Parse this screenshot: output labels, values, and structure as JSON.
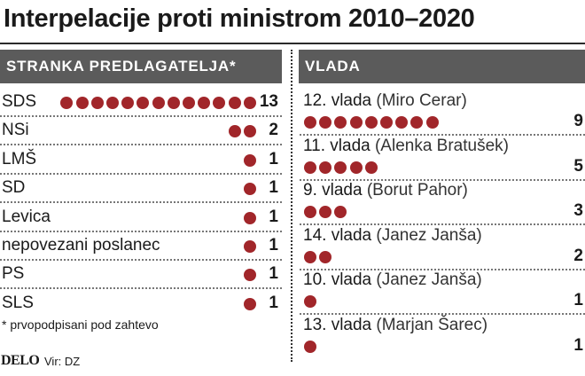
{
  "title": "Interpelacije proti ministrom 2010–2020",
  "chart_data": [
    {
      "type": "dot",
      "header": "STRANKA PREDLAGATELJA*",
      "categories": [
        "SDS",
        "NSi",
        "LMŠ",
        "SD",
        "Levica",
        "nepovezani poslanec",
        "PS",
        "SLS"
      ],
      "values": [
        13,
        2,
        1,
        1,
        1,
        1,
        1,
        1
      ]
    },
    {
      "type": "dot",
      "header": "VLADA",
      "categories": [
        "12. vlada",
        "11. vlada",
        "9. vlada",
        "14. vlada",
        "10. vlada",
        "13. vlada"
      ],
      "prime_ministers": [
        "(Miro Cerar)",
        "(Alenka Bratušek)",
        "(Borut Pahor)",
        "(Janez Janša)",
        "(Janez Janša)",
        "(Marjan Šarec)"
      ],
      "values": [
        9,
        5,
        3,
        2,
        1,
        1
      ]
    }
  ],
  "colors": {
    "dot": "#a1262a",
    "header_bg": "#5b5b5b"
  },
  "footnote": "* prvopodpisani pod zahtevo",
  "logo": "DELO",
  "source": "Vir: DZ"
}
